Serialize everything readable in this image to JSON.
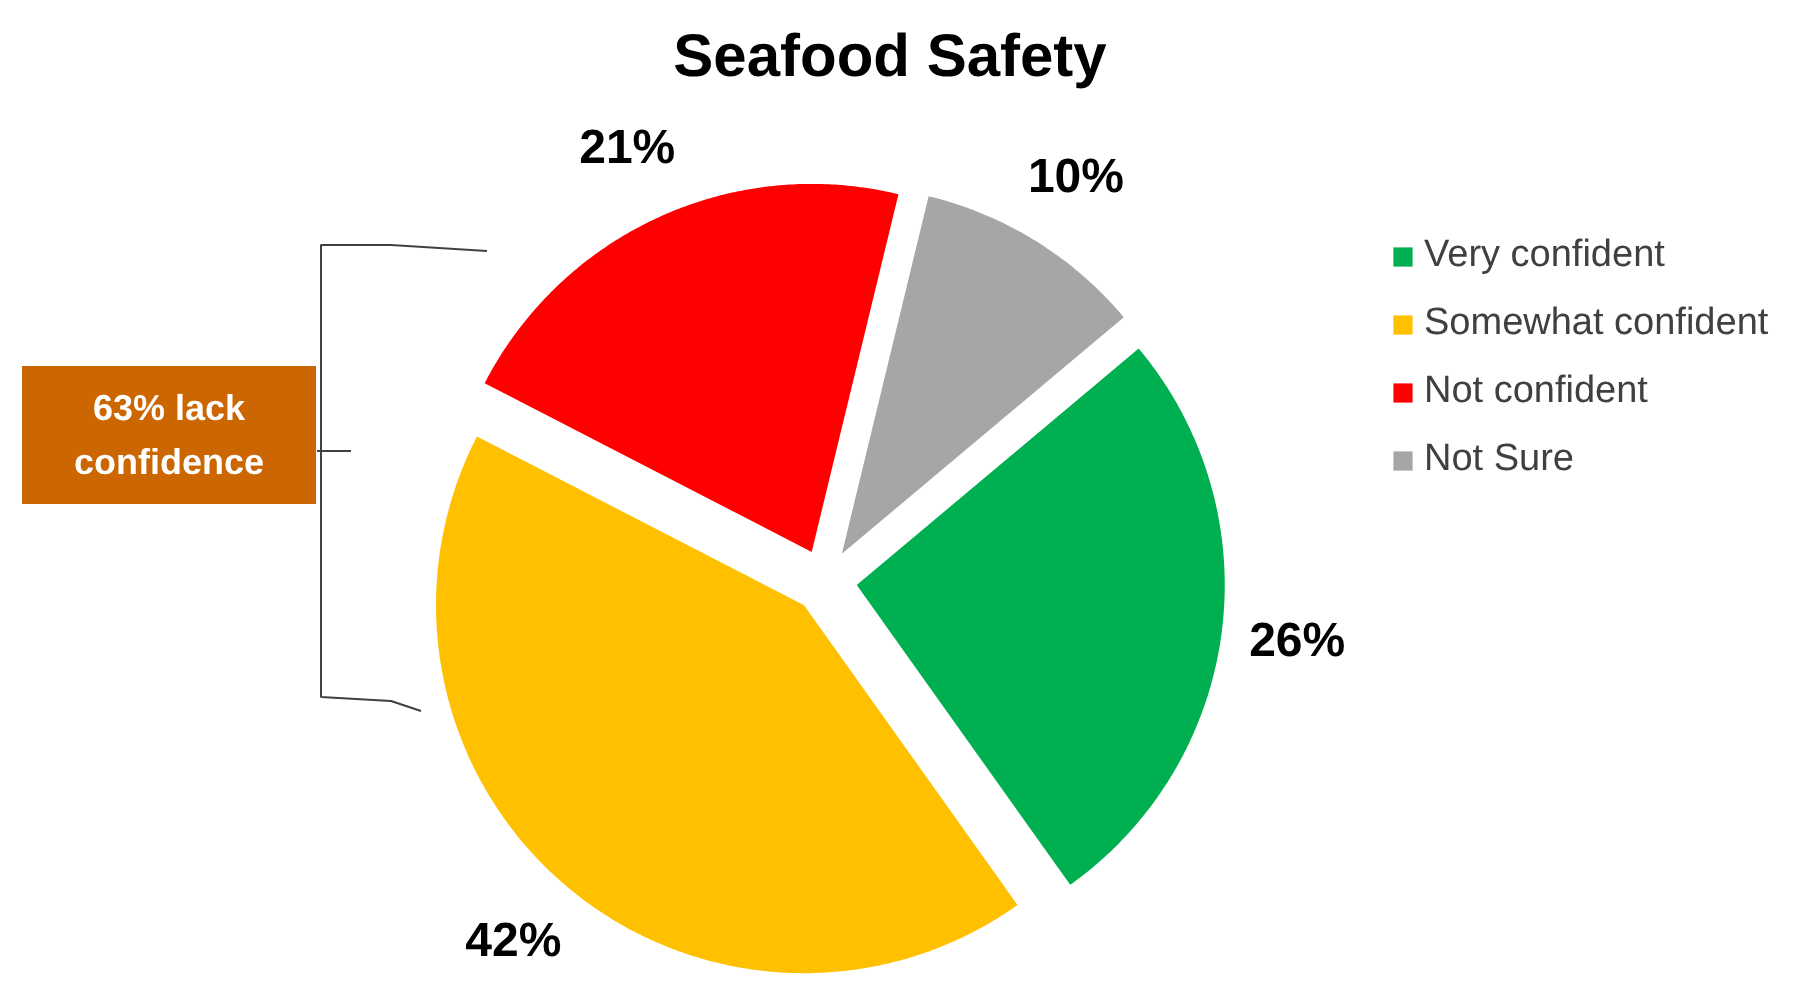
{
  "chart_data": {
    "type": "pie",
    "title": "Seafood Safety",
    "categories": [
      "Very confident",
      "Somewhat confident",
      "Not confident",
      "Not Sure"
    ],
    "values": [
      26,
      42,
      21,
      10
    ],
    "colors": [
      "#00b050",
      "#ffc000",
      "#ff0000",
      "#a6a6a6"
    ],
    "value_labels": [
      "26%",
      "42%",
      "21%",
      "10%"
    ],
    "legend": "right",
    "annotations": [
      "63% lack confidence"
    ]
  }
}
